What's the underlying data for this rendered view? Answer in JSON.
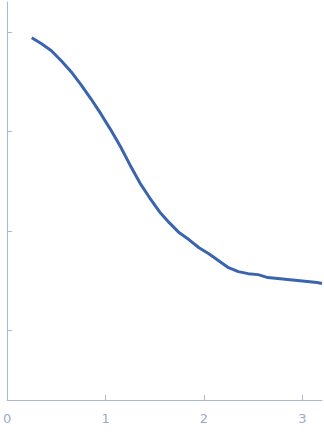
{
  "chart_data": {
    "type": "line",
    "color": "#3a64ad",
    "x": [
      0.25,
      0.35,
      0.45,
      0.55,
      0.65,
      0.75,
      0.85,
      0.95,
      1.05,
      1.15,
      1.25,
      1.35,
      1.45,
      1.55,
      1.65,
      1.75,
      1.85,
      1.95,
      2.05,
      2.15,
      2.25,
      2.35,
      2.45,
      2.55,
      2.65,
      2.75,
      2.85,
      2.95,
      3.05,
      3.15,
      3.2
    ],
    "values": [
      3.94,
      3.88,
      3.81,
      3.71,
      3.6,
      3.47,
      3.33,
      3.18,
      3.02,
      2.85,
      2.66,
      2.48,
      2.33,
      2.19,
      2.08,
      1.98,
      1.91,
      1.83,
      1.77,
      1.7,
      1.63,
      1.59,
      1.57,
      1.56,
      1.53,
      1.52,
      1.51,
      1.5,
      1.49,
      1.48,
      1.47
    ],
    "xlim": [
      0,
      3.2
    ],
    "xticks": [
      0,
      1,
      2,
      3
    ],
    "ylim": [
      0.3,
      4.3
    ],
    "yticks": [
      1,
      2,
      3,
      4
    ],
    "tick_labels": "x",
    "grid": false
  }
}
